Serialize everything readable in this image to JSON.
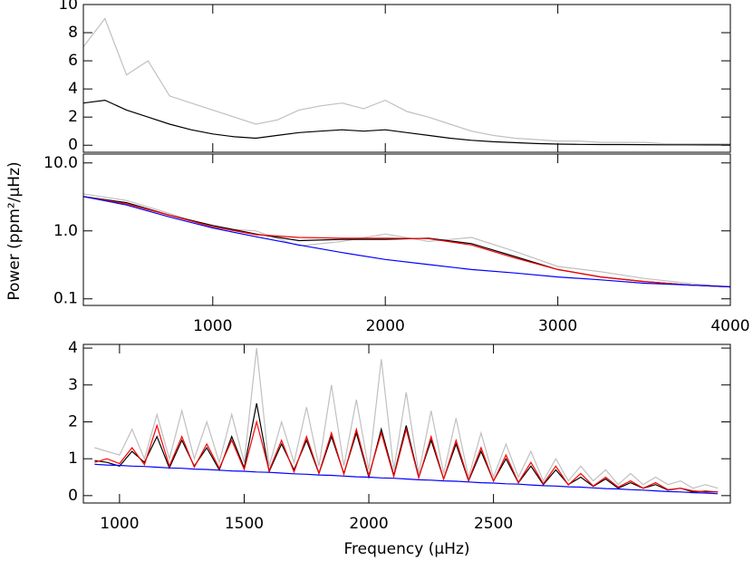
{
  "chart_data": [
    {
      "type": "line",
      "x": [
        250,
        375,
        500,
        625,
        750,
        875,
        1000,
        1125,
        1250,
        1375,
        1500,
        1625,
        1750,
        1875,
        2000,
        2125,
        2250,
        2375,
        2500,
        2625,
        2750,
        2875,
        3000,
        3125,
        3250,
        3375,
        3500,
        3625,
        3750,
        3875,
        4000
      ],
      "series": [
        {
          "color": "#c0c0c0",
          "values": [
            7,
            9,
            5,
            6,
            3.5,
            3,
            2.5,
            2,
            1.5,
            1.8,
            2.5,
            2.8,
            3,
            2.6,
            3.2,
            2.4,
            2,
            1.5,
            1,
            0.7,
            0.5,
            0.4,
            0.3,
            0.3,
            0.2,
            0.2,
            0.2,
            0.1,
            0.1,
            0.1,
            0.1
          ]
        },
        {
          "color": "#000000",
          "values": [
            3,
            3.2,
            2.5,
            2,
            1.5,
            1.1,
            0.8,
            0.6,
            0.5,
            0.7,
            0.9,
            1.0,
            1.1,
            1.0,
            1.1,
            0.9,
            0.7,
            0.5,
            0.35,
            0.25,
            0.18,
            0.12,
            0.08,
            0.06,
            0.05,
            0.05,
            0.04,
            0.03,
            0.03,
            0.02,
            0.02
          ]
        }
      ],
      "xlim": [
        250,
        4000
      ],
      "ylim": [
        -0.5,
        10
      ],
      "yticks": [
        0,
        2,
        4,
        6,
        8,
        10
      ],
      "xticks": [
        1000,
        2000,
        3000,
        4000
      ],
      "show_xtick_labels": false
    },
    {
      "type": "line",
      "x": [
        250,
        500,
        750,
        1000,
        1250,
        1500,
        1750,
        2000,
        2250,
        2500,
        2750,
        3000,
        3250,
        3500,
        3750,
        4000
      ],
      "series": [
        {
          "color": "#c0c0c0",
          "values": [
            3.5,
            2.8,
            1.8,
            1.1,
            1.0,
            0.6,
            0.7,
            0.9,
            0.7,
            0.8,
            0.5,
            0.3,
            0.25,
            0.2,
            0.17,
            0.15
          ]
        },
        {
          "color": "#000000",
          "values": [
            3.2,
            2.6,
            1.7,
            1.2,
            0.9,
            0.72,
            0.75,
            0.75,
            0.78,
            0.65,
            0.42,
            0.27,
            0.21,
            0.18,
            0.16,
            0.15
          ]
        },
        {
          "color": "#ff0000",
          "values": [
            3.2,
            2.5,
            1.7,
            1.15,
            0.88,
            0.8,
            0.78,
            0.78,
            0.77,
            0.62,
            0.4,
            0.27,
            0.21,
            0.18,
            0.16,
            0.15
          ]
        },
        {
          "color": "#0000ff",
          "values": [
            3.2,
            2.4,
            1.6,
            1.1,
            0.82,
            0.62,
            0.48,
            0.38,
            0.32,
            0.27,
            0.24,
            0.21,
            0.19,
            0.17,
            0.16,
            0.15
          ]
        }
      ],
      "xlim": [
        250,
        4000
      ],
      "ylim": [
        0.08,
        13.5
      ],
      "log_y": true,
      "yticks": [
        {
          "value": 10,
          "label": "10.0"
        },
        {
          "value": 1,
          "label": "1.0"
        },
        {
          "value": 0.1,
          "label": "0.1"
        }
      ],
      "xticks": [
        1000,
        2000,
        3000,
        4000
      ],
      "ylabel": "Power (ppm²/μHz)"
    },
    {
      "type": "line",
      "x": [
        900,
        950,
        1000,
        1050,
        1100,
        1150,
        1200,
        1250,
        1300,
        1350,
        1400,
        1450,
        1500,
        1550,
        1600,
        1650,
        1700,
        1750,
        1800,
        1850,
        1900,
        1950,
        2000,
        2050,
        2100,
        2150,
        2200,
        2250,
        2300,
        2350,
        2400,
        2450,
        2500,
        2550,
        2600,
        2650,
        2700,
        2750,
        2800,
        2850,
        2900,
        2950,
        3000,
        3050,
        3100,
        3150,
        3200,
        3250,
        3300,
        3350,
        3400
      ],
      "series": [
        {
          "color": "#c0c0c0",
          "values": [
            1.3,
            1.2,
            1.1,
            1.8,
            1.0,
            2.2,
            1.0,
            2.3,
            1.0,
            2.0,
            0.9,
            2.2,
            0.9,
            4.0,
            0.8,
            2.0,
            0.9,
            2.4,
            0.8,
            3.0,
            0.8,
            2.6,
            0.7,
            3.7,
            0.7,
            2.8,
            0.6,
            2.3,
            0.6,
            2.1,
            0.5,
            1.7,
            0.5,
            1.4,
            0.5,
            1.2,
            0.4,
            1.0,
            0.4,
            0.8,
            0.4,
            0.7,
            0.3,
            0.6,
            0.3,
            0.5,
            0.3,
            0.4,
            0.2,
            0.3,
            0.2
          ]
        },
        {
          "color": "#000000",
          "values": [
            0.95,
            0.9,
            0.8,
            1.2,
            0.9,
            1.6,
            0.75,
            1.5,
            0.8,
            1.3,
            0.7,
            1.6,
            0.75,
            2.5,
            0.65,
            1.4,
            0.7,
            1.5,
            0.6,
            1.6,
            0.6,
            1.7,
            0.5,
            1.8,
            0.55,
            1.9,
            0.5,
            1.5,
            0.45,
            1.4,
            0.4,
            1.2,
            0.4,
            1.0,
            0.35,
            0.8,
            0.3,
            0.7,
            0.3,
            0.5,
            0.25,
            0.45,
            0.2,
            0.35,
            0.2,
            0.3,
            0.15,
            0.2,
            0.1,
            0.12,
            0.1
          ]
        },
        {
          "color": "#ff0000",
          "values": [
            0.9,
            1.0,
            0.87,
            1.3,
            0.84,
            1.9,
            0.8,
            1.6,
            0.77,
            1.4,
            0.74,
            1.5,
            0.71,
            2.0,
            0.68,
            1.5,
            0.64,
            1.6,
            0.61,
            1.7,
            0.58,
            1.8,
            0.55,
            1.7,
            0.52,
            1.8,
            0.48,
            1.6,
            0.45,
            1.5,
            0.42,
            1.3,
            0.39,
            1.1,
            0.36,
            0.9,
            0.32,
            0.8,
            0.29,
            0.6,
            0.26,
            0.5,
            0.23,
            0.4,
            0.2,
            0.35,
            0.16,
            0.2,
            0.13,
            0.1,
            0.1
          ]
        },
        {
          "color": "#0000ff",
          "values": [
            0.85,
            0.83,
            0.82,
            0.8,
            0.79,
            0.77,
            0.75,
            0.74,
            0.72,
            0.71,
            0.69,
            0.67,
            0.66,
            0.64,
            0.63,
            0.61,
            0.59,
            0.58,
            0.56,
            0.55,
            0.53,
            0.51,
            0.5,
            0.48,
            0.47,
            0.45,
            0.43,
            0.42,
            0.4,
            0.39,
            0.37,
            0.35,
            0.34,
            0.32,
            0.31,
            0.29,
            0.27,
            0.26,
            0.24,
            0.23,
            0.21,
            0.19,
            0.18,
            0.16,
            0.15,
            0.13,
            0.11,
            0.1,
            0.08,
            0.07,
            0.05
          ]
        }
      ],
      "xlim": [
        855,
        3450
      ],
      "ylim": [
        -0.2,
        4.1
      ],
      "yticks": [
        0,
        1,
        2,
        3,
        4
      ],
      "xticks": [
        1000,
        1500,
        2000,
        2500
      ],
      "xlabel": "Frequency (μHz)"
    }
  ]
}
